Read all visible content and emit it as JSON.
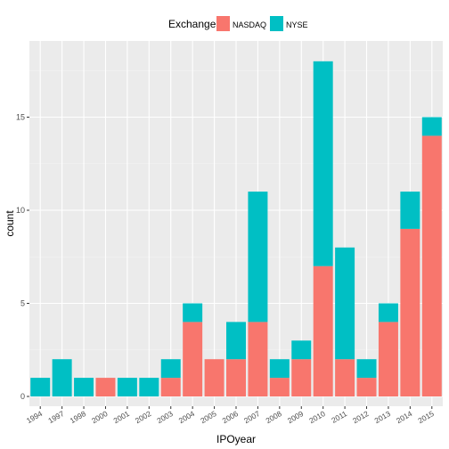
{
  "legend": {
    "title": "Exchange",
    "items": [
      {
        "label": "NASDAQ",
        "color": "#F8766D"
      },
      {
        "label": "NYSE",
        "color": "#00BFC4"
      }
    ],
    "position": "top"
  },
  "chart_data": {
    "type": "bar",
    "stacked": true,
    "xlabel": "IPOyear",
    "ylabel": "count",
    "ylim": [
      0,
      18.9
    ],
    "yticks": [
      0,
      5,
      10,
      15
    ],
    "grid": true,
    "categories": [
      "1994",
      "1997",
      "1998",
      "2000",
      "2001",
      "2002",
      "2003",
      "2004",
      "2005",
      "2006",
      "2007",
      "2008",
      "2009",
      "2010",
      "2011",
      "2012",
      "2013",
      "2014",
      "2015"
    ],
    "series": [
      {
        "name": "NASDAQ",
        "color": "#F8766D",
        "values": [
          0,
          0,
          0,
          1,
          0,
          0,
          1,
          4,
          2,
          2,
          4,
          1,
          2,
          7,
          2,
          1,
          4,
          9,
          14
        ]
      },
      {
        "name": "NYSE",
        "color": "#00BFC4",
        "values": [
          1,
          2,
          1,
          0,
          1,
          1,
          1,
          1,
          0,
          2,
          7,
          1,
          1,
          11,
          6,
          1,
          1,
          2,
          1
        ]
      }
    ]
  }
}
